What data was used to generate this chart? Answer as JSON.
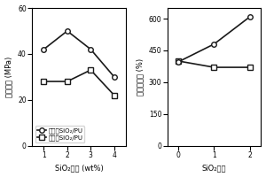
{
  "left_plot": {
    "x": [
      1,
      2,
      3,
      4
    ],
    "circle_series": [
      42,
      50,
      42,
      30
    ],
    "square_series": [
      28,
      28,
      33,
      22
    ],
    "ylabel": "拉伸强度 (MPa)",
    "xlabel": "SiO₂含量 (wt%)",
    "legend_square": "层状型SiO₂/PU",
    "legend_circle": "结构型SiO₂/PU",
    "ylim": [
      0,
      60
    ],
    "yticks": [
      0,
      20,
      40,
      60
    ],
    "xlim": [
      0.5,
      4.5
    ]
  },
  "right_plot": {
    "x": [
      0,
      1,
      2
    ],
    "square_series": [
      400,
      370,
      370
    ],
    "circle_series": [
      395,
      480,
      610
    ],
    "ylabel": "断裂伸长率 (%)",
    "xlabel": "SiO₂含量",
    "ylim": [
      0,
      650
    ],
    "yticks": [
      0,
      150,
      300,
      450,
      600
    ],
    "xlim": [
      -0.3,
      2.3
    ]
  },
  "line_color": "#1a1a1a",
  "marker_square": "s",
  "marker_circle": "o",
  "marker_size": 4,
  "marker_facecolor": "white",
  "linewidth": 1.2,
  "font_size_label": 6,
  "font_size_tick": 5.5,
  "font_size_legend": 5
}
